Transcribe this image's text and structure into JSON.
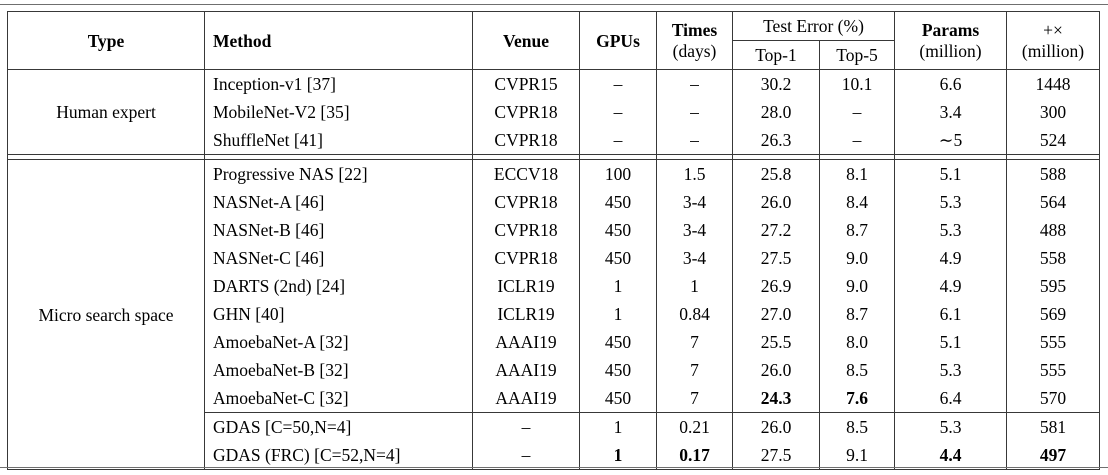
{
  "table": {
    "header": {
      "type": "Type",
      "method": "Method",
      "venue": "Venue",
      "gpus": "GPUs",
      "times_line1": "Times",
      "times_line2": "(days)",
      "test_error": "Test Error (%)",
      "top1": "Top-1",
      "top5": "Top-5",
      "params_line1": "Params",
      "params_line2": "(million)",
      "madds_line1": "+×",
      "madds_line2": "(million)"
    },
    "groups": [
      {
        "type": "Human expert",
        "rows": [
          {
            "method": "Inception-v1 [37]",
            "venue": "CVPR15",
            "gpus": "–",
            "times": "–",
            "top1": "30.2",
            "top5": "10.1",
            "params": "6.6",
            "madds": "1448",
            "bold": []
          },
          {
            "method": "MobileNet-V2 [35]",
            "venue": "CVPR18",
            "gpus": "–",
            "times": "–",
            "top1": "28.0",
            "top5": "–",
            "params": "3.4",
            "madds": "300",
            "bold": []
          },
          {
            "method": "ShuffleNet [41]",
            "venue": "CVPR18",
            "gpus": "–",
            "times": "–",
            "top1": "26.3",
            "top5": "–",
            "params": "∼5",
            "madds": "524",
            "bold": []
          }
        ]
      },
      {
        "type": "Micro search space",
        "rows": [
          {
            "method": "Progressive NAS [22]",
            "venue": "ECCV18",
            "gpus": "100",
            "times": "1.5",
            "top1": "25.8",
            "top5": "8.1",
            "params": "5.1",
            "madds": "588",
            "bold": []
          },
          {
            "method": "NASNet-A [46]",
            "venue": "CVPR18",
            "gpus": "450",
            "times": "3-4",
            "top1": "26.0",
            "top5": "8.4",
            "params": "5.3",
            "madds": "564",
            "bold": []
          },
          {
            "method": "NASNet-B [46]",
            "venue": "CVPR18",
            "gpus": "450",
            "times": "3-4",
            "top1": "27.2",
            "top5": "8.7",
            "params": "5.3",
            "madds": "488",
            "bold": []
          },
          {
            "method": "NASNet-C [46]",
            "venue": "CVPR18",
            "gpus": "450",
            "times": "3-4",
            "top1": "27.5",
            "top5": "9.0",
            "params": "4.9",
            "madds": "558",
            "bold": []
          },
          {
            "method": "DARTS (2nd) [24]",
            "venue": "ICLR19",
            "gpus": "1",
            "times": "1",
            "top1": "26.9",
            "top5": "9.0",
            "params": "4.9",
            "madds": "595",
            "bold": []
          },
          {
            "method": "GHN [40]",
            "venue": "ICLR19",
            "gpus": "1",
            "times": "0.84",
            "top1": "27.0",
            "top5": "8.7",
            "params": "6.1",
            "madds": "569",
            "bold": []
          },
          {
            "method": "AmoebaNet-A [32]",
            "venue": "AAAI19",
            "gpus": "450",
            "times": "7",
            "top1": "25.5",
            "top5": "8.0",
            "params": "5.1",
            "madds": "555",
            "bold": []
          },
          {
            "method": "AmoebaNet-B [32]",
            "venue": "AAAI19",
            "gpus": "450",
            "times": "7",
            "top1": "26.0",
            "top5": "8.5",
            "params": "5.3",
            "madds": "555",
            "bold": []
          },
          {
            "method": "AmoebaNet-C [32]",
            "venue": "AAAI19",
            "gpus": "450",
            "times": "7",
            "top1": "24.3",
            "top5": "7.6",
            "params": "6.4",
            "madds": "570",
            "bold": [
              "top1",
              "top5"
            ]
          },
          {
            "method": "GDAS [C=50,N=4]",
            "venue": "–",
            "gpus": "1",
            "times": "0.21",
            "top1": "26.0",
            "top5": "8.5",
            "params": "5.3",
            "madds": "581",
            "bold": [],
            "rule_above": true
          },
          {
            "method": "GDAS (FRC) [C=52,N=4]",
            "venue": "–",
            "gpus": "1",
            "times": "0.17",
            "top1": "27.5",
            "top5": "9.1",
            "params": "4.4",
            "madds": "497",
            "bold": [
              "gpus",
              "times",
              "params",
              "madds"
            ]
          }
        ]
      }
    ]
  }
}
